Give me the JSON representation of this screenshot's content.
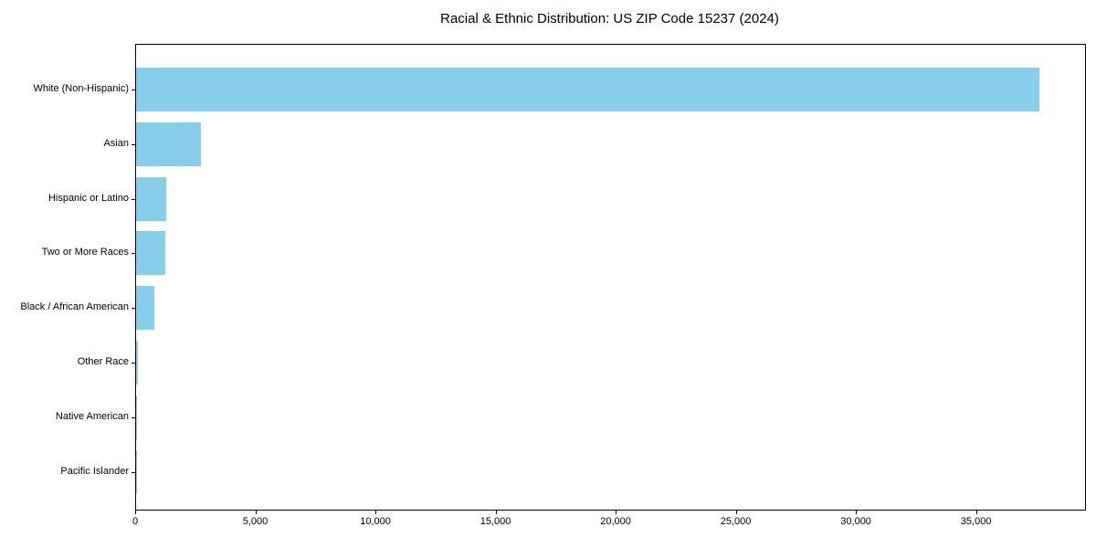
{
  "chart_data": {
    "type": "bar",
    "orientation": "horizontal",
    "title": "Racial & Ethnic Distribution: US ZIP Code 15237 (2024)",
    "categories": [
      "White (Non-Hispanic)",
      "Asian",
      "Hispanic or Latino",
      "Two or More Races",
      "Black / African American",
      "Other Race",
      "Native American",
      "Pacific Islander"
    ],
    "values": [
      37600,
      2700,
      1250,
      1220,
      770,
      60,
      20,
      10
    ],
    "xlabel": "",
    "ylabel": "",
    "xlim": [
      0,
      39500
    ],
    "xticks": [
      0,
      5000,
      10000,
      15000,
      20000,
      25000,
      30000,
      35000
    ],
    "xtick_labels": [
      "0",
      "5,000",
      "10,000",
      "15,000",
      "20,000",
      "25,000",
      "30,000",
      "35,000"
    ],
    "bar_color": "#87CEEB",
    "spine_color": "#000000",
    "text_color": "#000000",
    "grid": false,
    "legend": null
  }
}
